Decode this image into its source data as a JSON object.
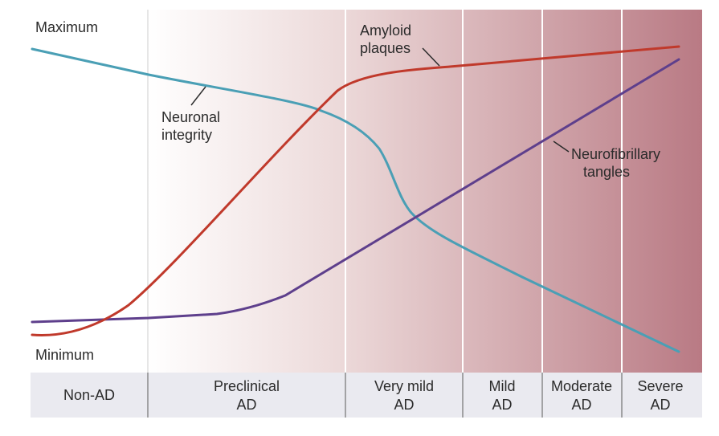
{
  "axis": {
    "max_label": "Maximum",
    "min_label": "Minimum"
  },
  "stages": [
    {
      "line1": "Non-AD",
      "line2": ""
    },
    {
      "line1": "Preclinical",
      "line2": "AD"
    },
    {
      "line1": "Very mild",
      "line2": "AD"
    },
    {
      "line1": "Mild",
      "line2": "AD"
    },
    {
      "line1": "Moderate",
      "line2": "AD"
    },
    {
      "line1": "Severe",
      "line2": "AD"
    }
  ],
  "curves": {
    "amyloid": {
      "line1": "Amyloid",
      "line2": "plaques",
      "color": "#c0392b"
    },
    "neuronal": {
      "line1": "Neuronal",
      "line2": "integrity",
      "color": "#4a9fb5"
    },
    "tangles": {
      "line1": "Neurofibrillary",
      "line2": "tangles",
      "color": "#5e3f8c"
    }
  },
  "colors": {
    "gradient_start": "#ffffff",
    "gradient_end": "#b97a84",
    "stage_bar": "#eaeaf0"
  }
}
